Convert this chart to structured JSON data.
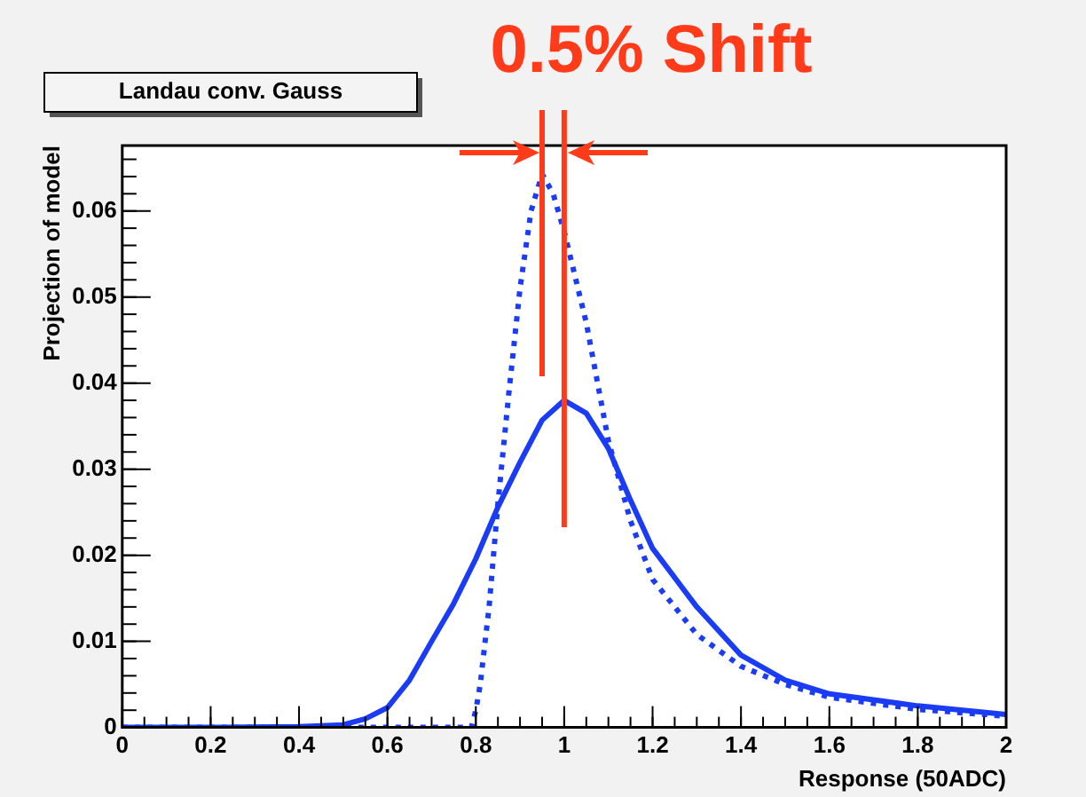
{
  "chart_data": {
    "type": "line",
    "title": "Landau conv. Gauss",
    "xlabel": "Response (50ADC)",
    "ylabel": "Projection of model",
    "annotations": [
      "0.5% Shift"
    ],
    "xlim": [
      0,
      2
    ],
    "xticks": [
      0,
      0.2,
      0.4,
      0.6,
      0.8,
      1,
      1.2,
      1.4,
      1.6,
      1.8,
      2
    ],
    "ylim": [
      0,
      0.0676
    ],
    "yticks": [
      0,
      0.01,
      0.02,
      0.03,
      0.04,
      0.05,
      0.06
    ],
    "grid": false,
    "legend": false,
    "marker": "none",
    "ref_lines": [
      {
        "axis": "x",
        "value": 0.95,
        "color": "#ff3b1a"
      },
      {
        "axis": "x",
        "value": 1.0,
        "color": "#ff3b1a"
      }
    ],
    "series": [
      {
        "color": "#1a3cf5",
        "line_style": "solid",
        "x": [
          0,
          0.2,
          0.4,
          0.5,
          0.55,
          0.6,
          0.65,
          0.7,
          0.75,
          0.8,
          0.85,
          0.9,
          0.95,
          1.0,
          1.05,
          1.1,
          1.15,
          1.2,
          1.3,
          1.4,
          1.5,
          1.6,
          1.8,
          2.0
        ],
        "values": [
          0,
          0,
          0.0001,
          0.0003,
          0.001,
          0.0023,
          0.0055,
          0.01,
          0.0144,
          0.0196,
          0.0256,
          0.0308,
          0.0357,
          0.038,
          0.0365,
          0.0324,
          0.0264,
          0.0208,
          0.014,
          0.0084,
          0.0055,
          0.0039,
          0.0025,
          0.0015
        ]
      },
      {
        "color": "#1a3cf5",
        "line_style": "dotted",
        "x": [
          0,
          0.4,
          0.79,
          0.8,
          0.81,
          0.83,
          0.85,
          0.875,
          0.9,
          0.925,
          0.95,
          0.975,
          1.0,
          1.05,
          1.1,
          1.15,
          1.2,
          1.3,
          1.4,
          1.5,
          1.6,
          1.8,
          2.0
        ],
        "values": [
          0,
          0,
          0,
          0.002,
          0.005,
          0.014,
          0.026,
          0.039,
          0.051,
          0.06,
          0.0643,
          0.062,
          0.0576,
          0.047,
          0.0333,
          0.024,
          0.0172,
          0.0108,
          0.0071,
          0.005,
          0.0035,
          0.0021,
          0.0013
        ]
      }
    ]
  }
}
